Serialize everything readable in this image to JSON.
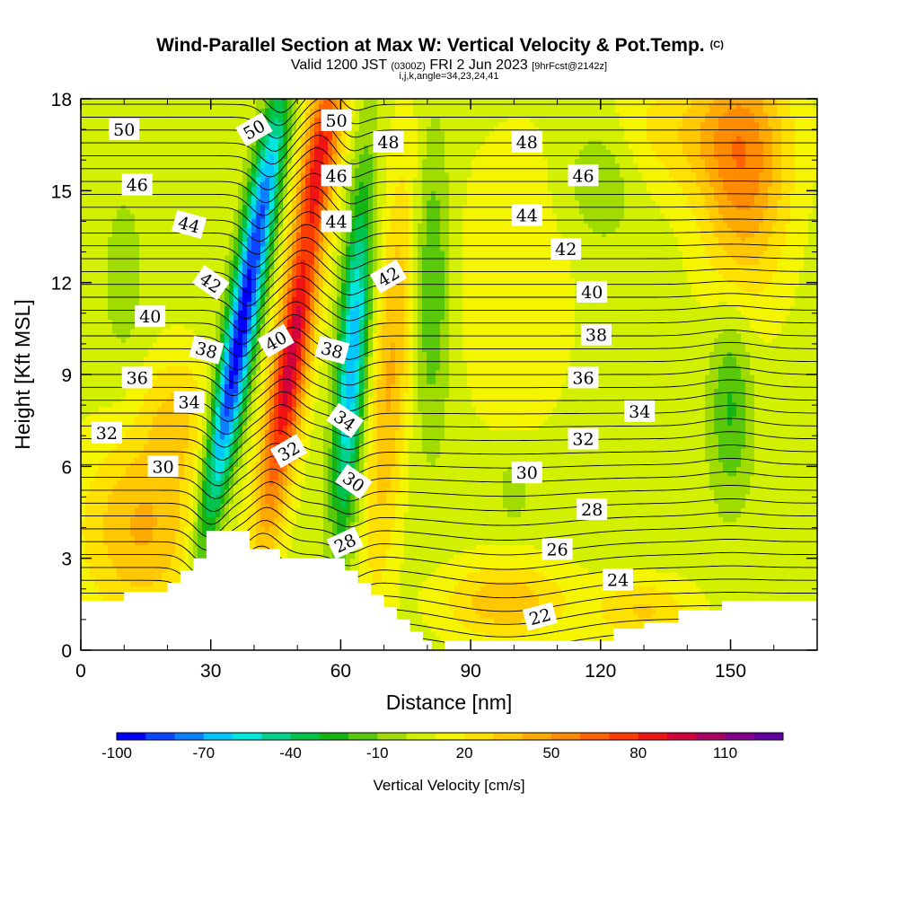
{
  "chart_data": {
    "type": "heatmap",
    "title": "Wind-Parallel Section at Max W: Vertical Velocity & Pot.Temp.",
    "title_mark": "(C)",
    "subtitle_parts": [
      "Valid 1200 JST ",
      "(0300Z)",
      " FRI 2 Jun 2023 ",
      "[9hrFcst@2142z]"
    ],
    "subtitle2": "i,j,k,angle=34,23,24,41",
    "xlabel": "Distance [nm]",
    "ylabel": "Height [Kft MSL]",
    "xlim": [
      0,
      170
    ],
    "ylim": [
      0,
      18
    ],
    "x_ticks": [
      0,
      30,
      60,
      90,
      120,
      150
    ],
    "y_ticks": [
      0,
      3,
      6,
      9,
      12,
      15,
      18
    ],
    "colorbar": {
      "label": "Vertical Velocity [cm/s]",
      "tick_labels": [
        -100,
        -70,
        -40,
        -10,
        20,
        50,
        80,
        110
      ],
      "levels": [
        -100,
        -90,
        -80,
        -70,
        -60,
        -50,
        -40,
        -30,
        -20,
        -10,
        0,
        10,
        20,
        30,
        40,
        50,
        60,
        70,
        80,
        90,
        100,
        110,
        120
      ],
      "colors": [
        "#0000ff",
        "#0a46ff",
        "#0a82ff",
        "#00c8ff",
        "#00e6dc",
        "#00d28c",
        "#00c34b",
        "#14b414",
        "#5ac80a",
        "#a0dc00",
        "#d2f000",
        "#f5f500",
        "#ffe100",
        "#ffc800",
        "#ffaa00",
        "#ff8c00",
        "#ff6400",
        "#ff3c00",
        "#f01414",
        "#d2003c",
        "#aa0064",
        "#82008c",
        "#6400a0"
      ]
    },
    "terrain_kft": [
      [
        0,
        1.6
      ],
      [
        10,
        1.6
      ],
      [
        10,
        1.9
      ],
      [
        20,
        1.9
      ],
      [
        20,
        2.2
      ],
      [
        23,
        2.2
      ],
      [
        23,
        2.6
      ],
      [
        26,
        2.6
      ],
      [
        26,
        3.0
      ],
      [
        29,
        3.0
      ],
      [
        29,
        3.9
      ],
      [
        39,
        3.9
      ],
      [
        39,
        3.3
      ],
      [
        46,
        3.3
      ],
      [
        46,
        3.0
      ],
      [
        61,
        3.0
      ],
      [
        61,
        2.6
      ],
      [
        64,
        2.6
      ],
      [
        64,
        2.2
      ],
      [
        67,
        2.2
      ],
      [
        67,
        1.8
      ],
      [
        70,
        1.8
      ],
      [
        70,
        1.4
      ],
      [
        73,
        1.4
      ],
      [
        73,
        1.0
      ],
      [
        76,
        1.0
      ],
      [
        76,
        0.6
      ],
      [
        79,
        0.6
      ],
      [
        79,
        0.3
      ],
      [
        81,
        0.3
      ],
      [
        81,
        0.0
      ],
      [
        84,
        0.0
      ],
      [
        84,
        0.3
      ],
      [
        123,
        0.3
      ],
      [
        123,
        0.7
      ],
      [
        130,
        0.7
      ],
      [
        130,
        0.9
      ],
      [
        138,
        0.9
      ],
      [
        138,
        1.3
      ],
      [
        148,
        1.3
      ],
      [
        148,
        1.6
      ],
      [
        170,
        1.6
      ]
    ],
    "isentrope_labels": [
      {
        "text": "50",
        "x": 10,
        "y": 17.0,
        "rot": 0
      },
      {
        "text": "50",
        "x": 40,
        "y": 17.0,
        "rot": -30
      },
      {
        "text": "50",
        "x": 59,
        "y": 17.3,
        "rot": 0
      },
      {
        "text": "48",
        "x": 71,
        "y": 16.6,
        "rot": 0
      },
      {
        "text": "48",
        "x": 103,
        "y": 16.6,
        "rot": 0
      },
      {
        "text": "46",
        "x": 13,
        "y": 15.2,
        "rot": 0
      },
      {
        "text": "46",
        "x": 59,
        "y": 15.5,
        "rot": 0
      },
      {
        "text": "46",
        "x": 116,
        "y": 15.5,
        "rot": 0
      },
      {
        "text": "44",
        "x": 25,
        "y": 13.9,
        "rot": 15
      },
      {
        "text": "44",
        "x": 59,
        "y": 14.0,
        "rot": 0
      },
      {
        "text": "44",
        "x": 103,
        "y": 14.2,
        "rot": 0
      },
      {
        "text": "42",
        "x": 30,
        "y": 12.0,
        "rot": 35
      },
      {
        "text": "42",
        "x": 71,
        "y": 12.2,
        "rot": -30
      },
      {
        "text": "42",
        "x": 112,
        "y": 13.1,
        "rot": 0
      },
      {
        "text": "40",
        "x": 16,
        "y": 10.9,
        "rot": 0
      },
      {
        "text": "40",
        "x": 45,
        "y": 10.1,
        "rot": -30
      },
      {
        "text": "40",
        "x": 118,
        "y": 11.7,
        "rot": 0
      },
      {
        "text": "38",
        "x": 29,
        "y": 9.8,
        "rot": 15
      },
      {
        "text": "38",
        "x": 58,
        "y": 9.8,
        "rot": 15
      },
      {
        "text": "38",
        "x": 119,
        "y": 10.3,
        "rot": 0
      },
      {
        "text": "36",
        "x": 13,
        "y": 8.9,
        "rot": 0
      },
      {
        "text": "36",
        "x": 116,
        "y": 8.9,
        "rot": 0
      },
      {
        "text": "34",
        "x": 25,
        "y": 8.1,
        "rot": 0
      },
      {
        "text": "34",
        "x": 61,
        "y": 7.5,
        "rot": 35
      },
      {
        "text": "34",
        "x": 129,
        "y": 7.8,
        "rot": 0
      },
      {
        "text": "32",
        "x": 6,
        "y": 7.1,
        "rot": 0
      },
      {
        "text": "32",
        "x": 48,
        "y": 6.5,
        "rot": -30
      },
      {
        "text": "32",
        "x": 116,
        "y": 6.9,
        "rot": 0
      },
      {
        "text": "30",
        "x": 19,
        "y": 6.0,
        "rot": 0
      },
      {
        "text": "30",
        "x": 63,
        "y": 5.5,
        "rot": 35
      },
      {
        "text": "30",
        "x": 103,
        "y": 5.8,
        "rot": 0
      },
      {
        "text": "28",
        "x": 61,
        "y": 3.5,
        "rot": -25
      },
      {
        "text": "28",
        "x": 118,
        "y": 4.6,
        "rot": 0
      },
      {
        "text": "26",
        "x": 110,
        "y": 3.3,
        "rot": 0
      },
      {
        "text": "24",
        "x": 124,
        "y": 2.3,
        "rot": 0
      },
      {
        "text": "22",
        "x": 106,
        "y": 1.1,
        "rot": -15
      }
    ]
  }
}
